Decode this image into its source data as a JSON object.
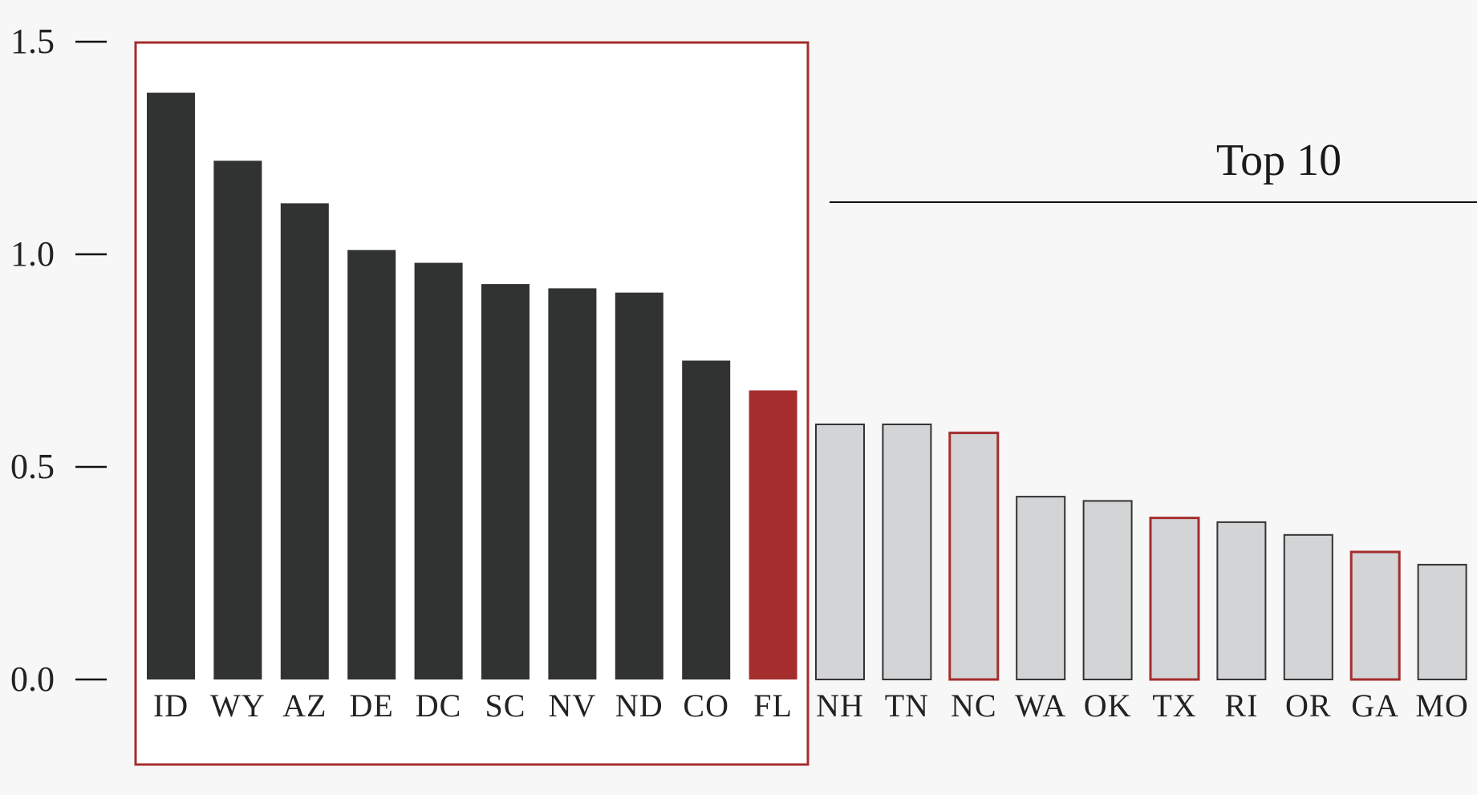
{
  "chart_data": {
    "type": "bar",
    "title": "",
    "xlabel": "",
    "ylabel": "",
    "ylim": [
      0,
      1.5
    ],
    "yticks": [
      "0.0",
      "0.5",
      "1.0",
      "1.5"
    ],
    "categories": [
      "ID",
      "WY",
      "AZ",
      "DE",
      "DC",
      "SC",
      "NV",
      "ND",
      "CO",
      "FL",
      "NH",
      "TN",
      "NC",
      "WA",
      "OK",
      "TX",
      "RI",
      "OR",
      "GA",
      "MO"
    ],
    "values": [
      1.38,
      1.22,
      1.12,
      1.01,
      0.98,
      0.93,
      0.92,
      0.91,
      0.75,
      0.68,
      0.6,
      0.6,
      0.58,
      0.43,
      0.42,
      0.38,
      0.37,
      0.34,
      0.3,
      0.27
    ],
    "top_n": 10,
    "highlighted_categories": [
      "FL",
      "NC",
      "TX",
      "GA"
    ],
    "annotation": "Top 10",
    "colors": {
      "top_bar": "#313232",
      "other_bar_fill": "#d3d4d6",
      "other_bar_stroke": "#333333",
      "highlight": "#a52d2d",
      "top_box": "#a52d2d",
      "top_box_fill": "#ffffff",
      "axis": "#111111"
    }
  }
}
